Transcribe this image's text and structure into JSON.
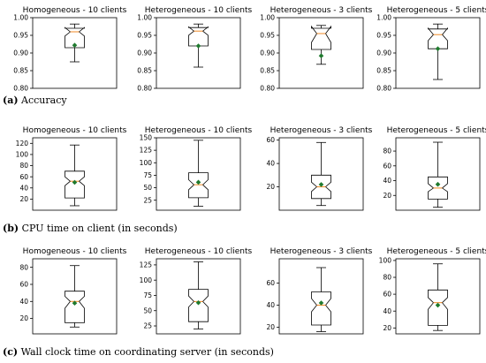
{
  "rows": [
    {
      "caption_label": "(a)",
      "caption_text": "Accuracy",
      "chart_data": [
        {
          "type": "box",
          "title": "Homogeneous - 10 clients",
          "ylim": [
            0.8,
            1.0
          ],
          "ticks": [
            0.8,
            0.85,
            0.9,
            0.95,
            1.0
          ],
          "tick_labels": [
            "0.80",
            "0.85",
            "0.90",
            "0.95",
            "1.00"
          ],
          "box": {
            "whisker_low": 0.875,
            "q1": 0.915,
            "median": 0.96,
            "q3": 0.97,
            "whisker_high": 0.982,
            "notch_low": 0.948,
            "notch_high": 0.972,
            "mean": 0.922
          }
        },
        {
          "type": "box",
          "title": "Heterogeneous - 10 clients",
          "ylim": [
            0.8,
            1.0
          ],
          "ticks": [
            0.8,
            0.85,
            0.9,
            0.95,
            1.0
          ],
          "tick_labels": [
            "0.80",
            "0.85",
            "0.90",
            "0.95",
            "1.00"
          ],
          "box": {
            "whisker_low": 0.86,
            "q1": 0.92,
            "median": 0.962,
            "q3": 0.972,
            "whisker_high": 0.982,
            "notch_low": 0.95,
            "notch_high": 0.974,
            "mean": 0.92
          }
        },
        {
          "type": "box",
          "title": "Heterogeneous - 3 clients",
          "ylim": [
            0.8,
            1.0
          ],
          "ticks": [
            0.8,
            0.85,
            0.9,
            0.95,
            1.0
          ],
          "tick_labels": [
            "0.80",
            "0.85",
            "0.90",
            "0.95",
            "1.00"
          ],
          "box": {
            "whisker_low": 0.868,
            "q1": 0.91,
            "median": 0.955,
            "q3": 0.97,
            "whisker_high": 0.978,
            "notch_low": 0.93,
            "notch_high": 0.975,
            "mean": 0.892
          }
        },
        {
          "type": "box",
          "title": "Heterogeneous - 5 clients",
          "ylim": [
            0.8,
            1.0
          ],
          "ticks": [
            0.8,
            0.85,
            0.9,
            0.95,
            1.0
          ],
          "tick_labels": [
            "0.80",
            "0.85",
            "0.90",
            "0.95",
            "1.00"
          ],
          "box": {
            "whisker_low": 0.825,
            "q1": 0.912,
            "median": 0.952,
            "q3": 0.968,
            "whisker_high": 0.982,
            "notch_low": 0.935,
            "notch_high": 0.97,
            "mean": 0.912
          }
        }
      ]
    },
    {
      "caption_label": "(b)",
      "caption_text": "CPU time on client (in seconds)",
      "chart_data": [
        {
          "type": "box",
          "title": "Homogeneous - 10 clients",
          "ylim": [
            0,
            130
          ],
          "ticks": [
            20,
            40,
            60,
            80,
            100,
            120
          ],
          "tick_labels": [
            "20",
            "40",
            "60",
            "80",
            "100",
            "120"
          ],
          "box": {
            "whisker_low": 8,
            "q1": 22,
            "median": 52,
            "q3": 70,
            "whisker_high": 117,
            "notch_low": 44,
            "notch_high": 60,
            "mean": 50
          }
        },
        {
          "type": "box",
          "title": "Heterogeneous - 10 clients",
          "ylim": [
            5,
            150
          ],
          "ticks": [
            25,
            50,
            75,
            100,
            125,
            150
          ],
          "tick_labels": [
            "25",
            "50",
            "75",
            "100",
            "125",
            "150"
          ],
          "box": {
            "whisker_low": 13,
            "q1": 30,
            "median": 56,
            "q3": 80,
            "whisker_high": 145,
            "notch_low": 46,
            "notch_high": 66,
            "mean": 61
          }
        },
        {
          "type": "box",
          "title": "Heterogeneous - 3 clients",
          "ylim": [
            0,
            62
          ],
          "ticks": [
            20,
            40,
            60
          ],
          "tick_labels": [
            "20",
            "40",
            "60"
          ],
          "box": {
            "whisker_low": 4,
            "q1": 10,
            "median": 20,
            "q3": 30,
            "whisker_high": 58,
            "notch_low": 16,
            "notch_high": 24,
            "mean": 22
          }
        },
        {
          "type": "box",
          "title": "Heterogeneous - 5 clients",
          "ylim": [
            0,
            98
          ],
          "ticks": [
            20,
            40,
            60,
            80
          ],
          "tick_labels": [
            "20",
            "40",
            "60",
            "80"
          ],
          "box": {
            "whisker_low": 4,
            "q1": 15,
            "median": 30,
            "q3": 45,
            "whisker_high": 92,
            "notch_low": 25,
            "notch_high": 36,
            "mean": 35
          }
        }
      ]
    },
    {
      "caption_label": "(c)",
      "caption_text": "Wall clock time on coordinating server (in seconds)",
      "chart_data": [
        {
          "type": "box",
          "title": "Homogeneous - 10 clients",
          "ylim": [
            2,
            90
          ],
          "ticks": [
            20,
            40,
            60,
            80
          ],
          "tick_labels": [
            "20",
            "40",
            "60",
            "80"
          ],
          "box": {
            "whisker_low": 10,
            "q1": 15,
            "median": 40,
            "q3": 52,
            "whisker_high": 82,
            "notch_low": 32,
            "notch_high": 46,
            "mean": 38
          }
        },
        {
          "type": "box",
          "title": "Heterogeneous - 10 clients",
          "ylim": [
            12,
            135
          ],
          "ticks": [
            25,
            50,
            75,
            100,
            125
          ],
          "tick_labels": [
            "25",
            "50",
            "75",
            "100",
            "125"
          ],
          "box": {
            "whisker_low": 20,
            "q1": 32,
            "median": 65,
            "q3": 85,
            "whisker_high": 130,
            "notch_low": 56,
            "notch_high": 74,
            "mean": 63
          }
        },
        {
          "type": "box",
          "title": "Heterogeneous - 3 clients",
          "ylim": [
            14,
            82
          ],
          "ticks": [
            20,
            40,
            60
          ],
          "tick_labels": [
            "20",
            "40",
            "60"
          ],
          "box": {
            "whisker_low": 16,
            "q1": 22,
            "median": 40,
            "q3": 52,
            "whisker_high": 74,
            "notch_low": 34,
            "notch_high": 46,
            "mean": 42
          }
        },
        {
          "type": "box",
          "title": "Heterogeneous - 5 clients",
          "ylim": [
            13,
            102
          ],
          "ticks": [
            20,
            40,
            60,
            80,
            100
          ],
          "tick_labels": [
            "20",
            "40",
            "60",
            "80",
            "100"
          ],
          "box": {
            "whisker_low": 17,
            "q1": 23,
            "median": 50,
            "q3": 65,
            "whisker_high": 96,
            "notch_low": 42,
            "notch_high": 56,
            "mean": 47
          }
        }
      ]
    }
  ]
}
